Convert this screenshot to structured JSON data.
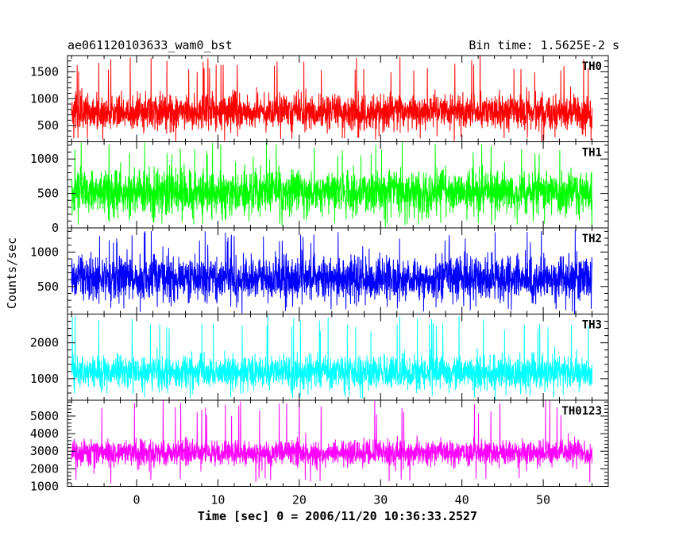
{
  "header": {
    "title": "ae061120103633_wam0_bst",
    "bin_time": "Bin time: 1.5625E-2 s"
  },
  "chart_data": {
    "type": "line",
    "xlabel": "Time [sec] 0 = 2006/11/20 10:36:33.2527",
    "ylabel": "Counts/sec",
    "xlim": [
      -8.5,
      58
    ],
    "x_range_data": [
      -8,
      56
    ],
    "xticks": [
      0,
      10,
      20,
      30,
      40,
      50
    ],
    "x_minor_step": 2,
    "grid": false,
    "panels": [
      {
        "name": "TH0",
        "color": "#ff0000",
        "ylim": [
          200,
          1800
        ],
        "yticks": [
          500,
          1000,
          1500
        ],
        "y_minor_step": 100,
        "mean": 760,
        "spread": 300,
        "peak": 1800,
        "trough": 200
      },
      {
        "name": "TH1",
        "color": "#00ff00",
        "ylim": [
          0,
          1250
        ],
        "yticks": [
          0,
          500,
          1000
        ],
        "y_minor_step": 100,
        "mean": 520,
        "spread": 280,
        "peak": 1250,
        "trough": 30
      },
      {
        "name": "TH2",
        "color": "#0000ff",
        "ylim": [
          100,
          1350
        ],
        "yticks": [
          500,
          1000
        ],
        "y_minor_step": 100,
        "mean": 620,
        "spread": 290,
        "peak": 1350,
        "trough": 120
      },
      {
        "name": "TH3",
        "color": "#00ffff",
        "ylim": [
          400,
          2800
        ],
        "yticks": [
          1000,
          2000
        ],
        "y_minor_step": 200,
        "mean": 1180,
        "spread": 420,
        "peak": 2800,
        "trough": 450
      },
      {
        "name": "TH0123",
        "color": "#ff00ff",
        "ylim": [
          1000,
          5900
        ],
        "yticks": [
          1000,
          2000,
          3000,
          4000,
          5000
        ],
        "y_minor_step": 200,
        "mean": 2900,
        "spread": 650,
        "peak": 5900,
        "trough": 1150
      }
    ]
  }
}
